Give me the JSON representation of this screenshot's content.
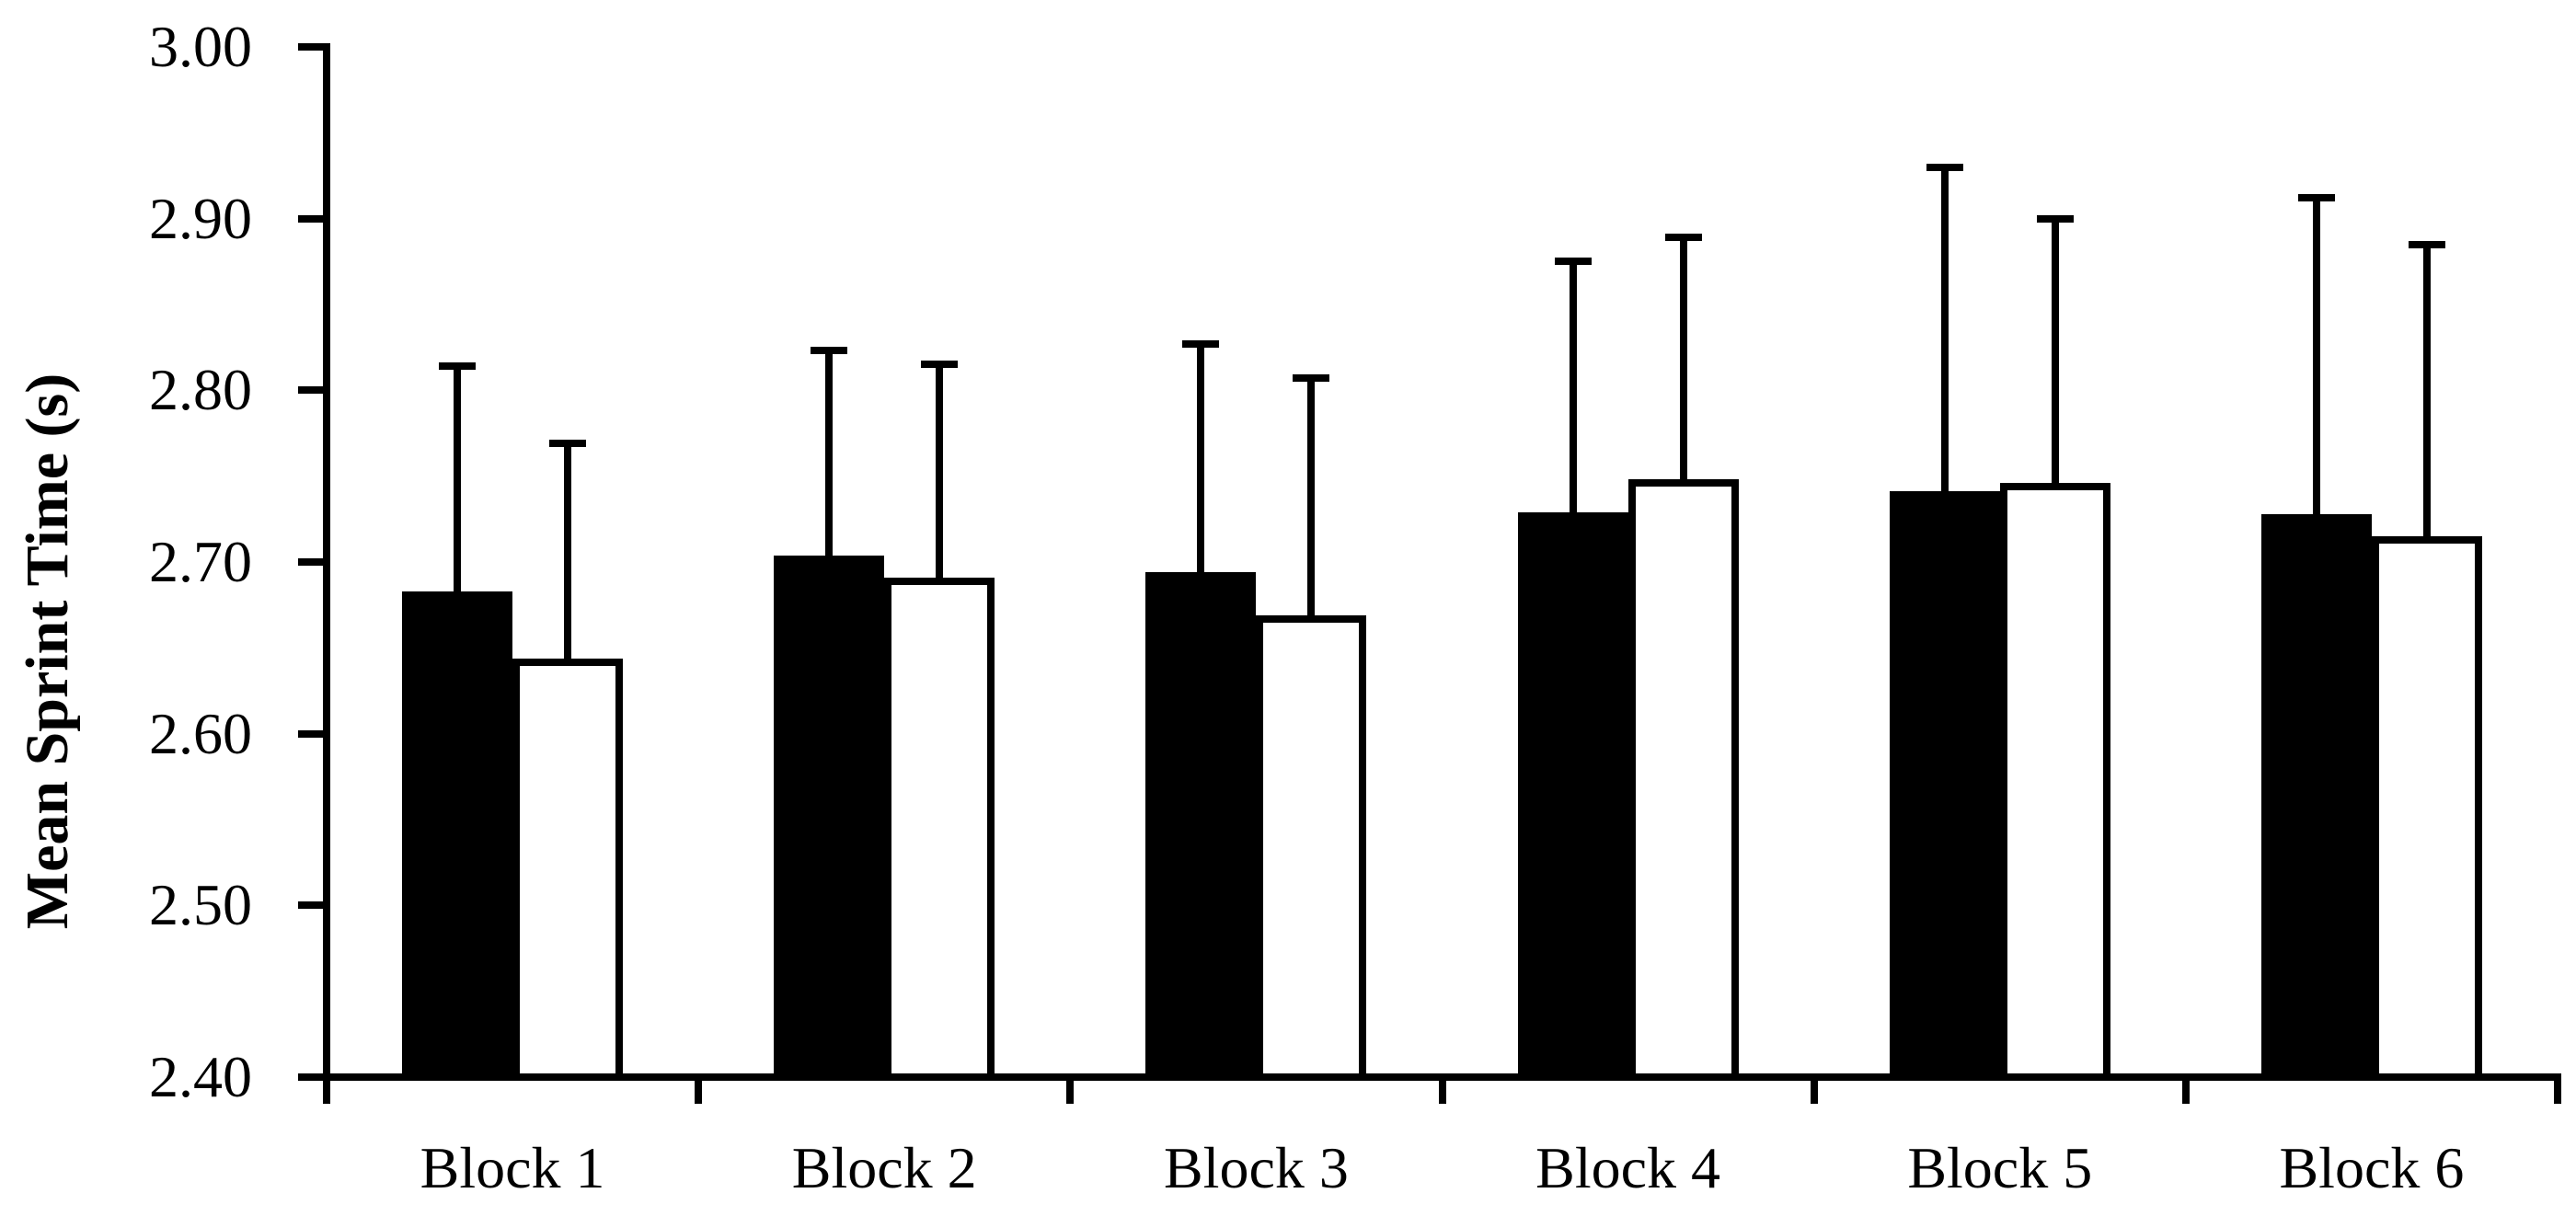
{
  "figure": {
    "background": "#ffffff",
    "ink": "#000000"
  },
  "chart_data": {
    "type": "bar",
    "title": "",
    "xlabel": "",
    "ylabel": "Mean Sprint Time (s)",
    "ylim": [
      2.4,
      3.0
    ],
    "ytick_step": 0.1,
    "ytick_labels": [
      "2.40",
      "2.50",
      "2.60",
      "2.70",
      "2.80",
      "2.90",
      "3.00"
    ],
    "categories": [
      "Block 1",
      "Block 2",
      "Block 3",
      "Block 4",
      "Block 5",
      "Block 6"
    ],
    "series": [
      {
        "name": "filled-black-bars",
        "fill": "#000000",
        "values": [
          2.683,
          2.704,
          2.694,
          2.729,
          2.741,
          2.728
        ],
        "error_upper": [
          0.131,
          0.119,
          0.133,
          0.146,
          0.189,
          0.184
        ]
      },
      {
        "name": "open-white-bars",
        "fill": "#ffffff",
        "values": [
          2.644,
          2.691,
          2.669,
          2.748,
          2.746,
          2.715
        ],
        "error_upper": [
          0.125,
          0.124,
          0.138,
          0.141,
          0.154,
          0.17
        ]
      }
    ],
    "error_bars": "upper-only-with-caps",
    "grid": false,
    "legend": "none"
  }
}
